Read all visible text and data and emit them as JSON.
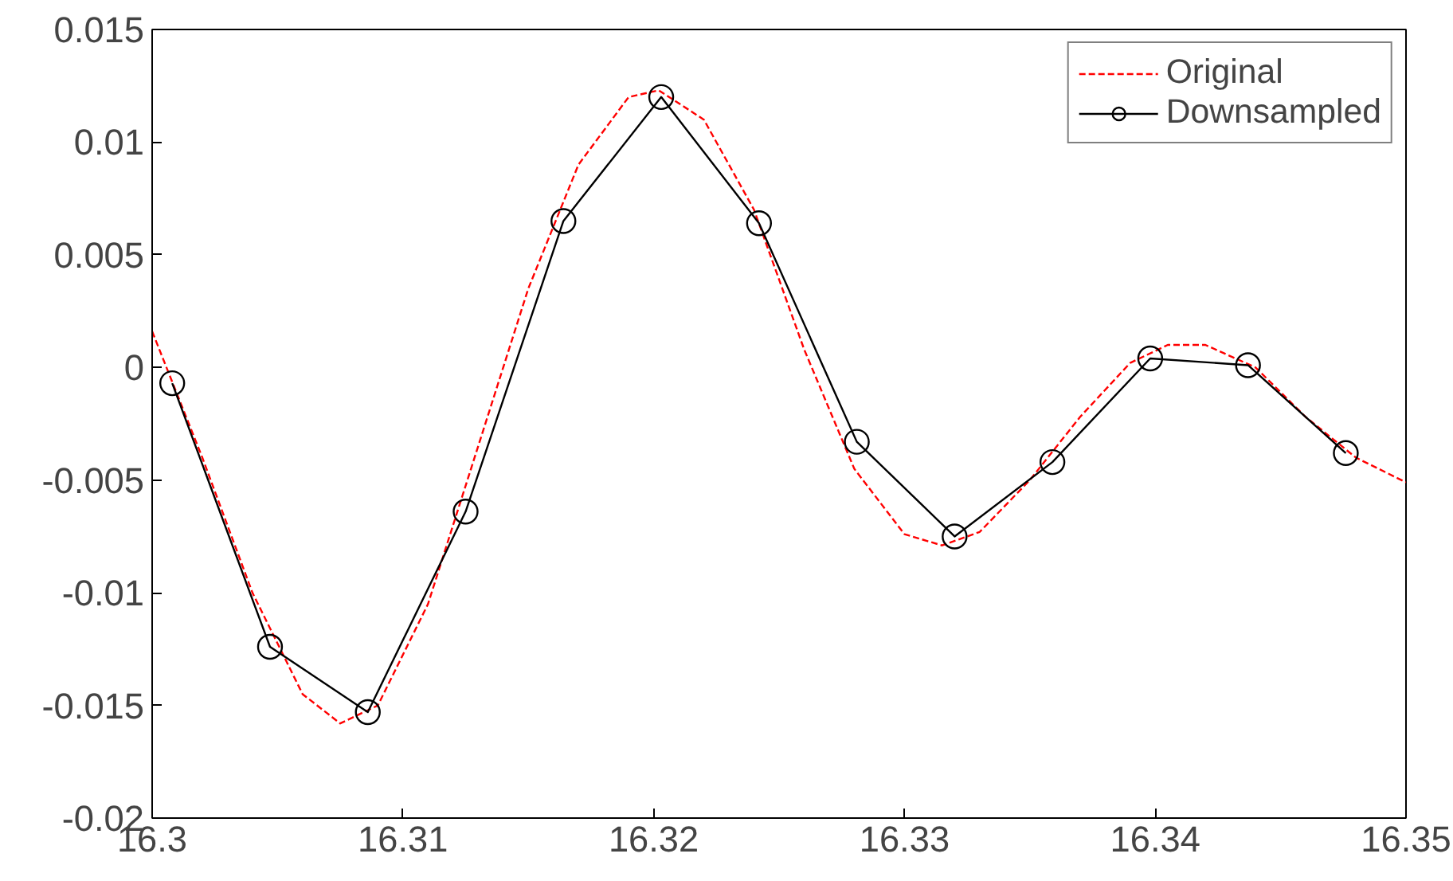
{
  "chart_data": {
    "type": "line",
    "xlim": [
      16.3,
      16.35
    ],
    "ylim": [
      -0.02,
      0.015
    ],
    "xticks": [
      16.3,
      16.31,
      16.32,
      16.33,
      16.34,
      16.35
    ],
    "yticks": [
      -0.02,
      -0.015,
      -0.01,
      -0.005,
      0,
      0.005,
      0.01,
      0.015
    ],
    "grid": false,
    "legend": "top right",
    "series": [
      {
        "name": "Original",
        "color": "#ff0000",
        "line_style": "dashed",
        "marker": "none",
        "x": [
          16.3,
          16.302,
          16.304,
          16.306,
          16.3075,
          16.309,
          16.311,
          16.313,
          16.315,
          16.317,
          16.319,
          16.3202,
          16.322,
          16.324,
          16.326,
          16.328,
          16.33,
          16.3315,
          16.333,
          16.335,
          16.337,
          16.339,
          16.3405,
          16.342,
          16.344,
          16.346,
          16.348,
          16.35
        ],
        "values": [
          0.0016,
          -0.004,
          -0.01,
          -0.0145,
          -0.0158,
          -0.015,
          -0.0105,
          -0.0035,
          0.0035,
          0.009,
          0.012,
          0.0123,
          0.011,
          0.007,
          0.0008,
          -0.0045,
          -0.0074,
          -0.0079,
          -0.0073,
          -0.005,
          -0.0022,
          0.0002,
          0.001,
          0.001,
          0.0,
          -0.0022,
          -0.004,
          -0.0051
        ]
      },
      {
        "name": "Downsampled",
        "color": "#000000",
        "line_style": "solid",
        "marker": "circle",
        "x": [
          16.3008,
          16.3047,
          16.3086,
          16.3125,
          16.3164,
          16.3203,
          16.3242,
          16.3281,
          16.332,
          16.3359,
          16.3398,
          16.3437,
          16.3476
        ],
        "values": [
          -0.0007,
          -0.0124,
          -0.0153,
          -0.0064,
          0.0065,
          0.012,
          0.0064,
          -0.0033,
          -0.0075,
          -0.0042,
          0.0004,
          0.0001,
          -0.0038
        ]
      }
    ]
  }
}
